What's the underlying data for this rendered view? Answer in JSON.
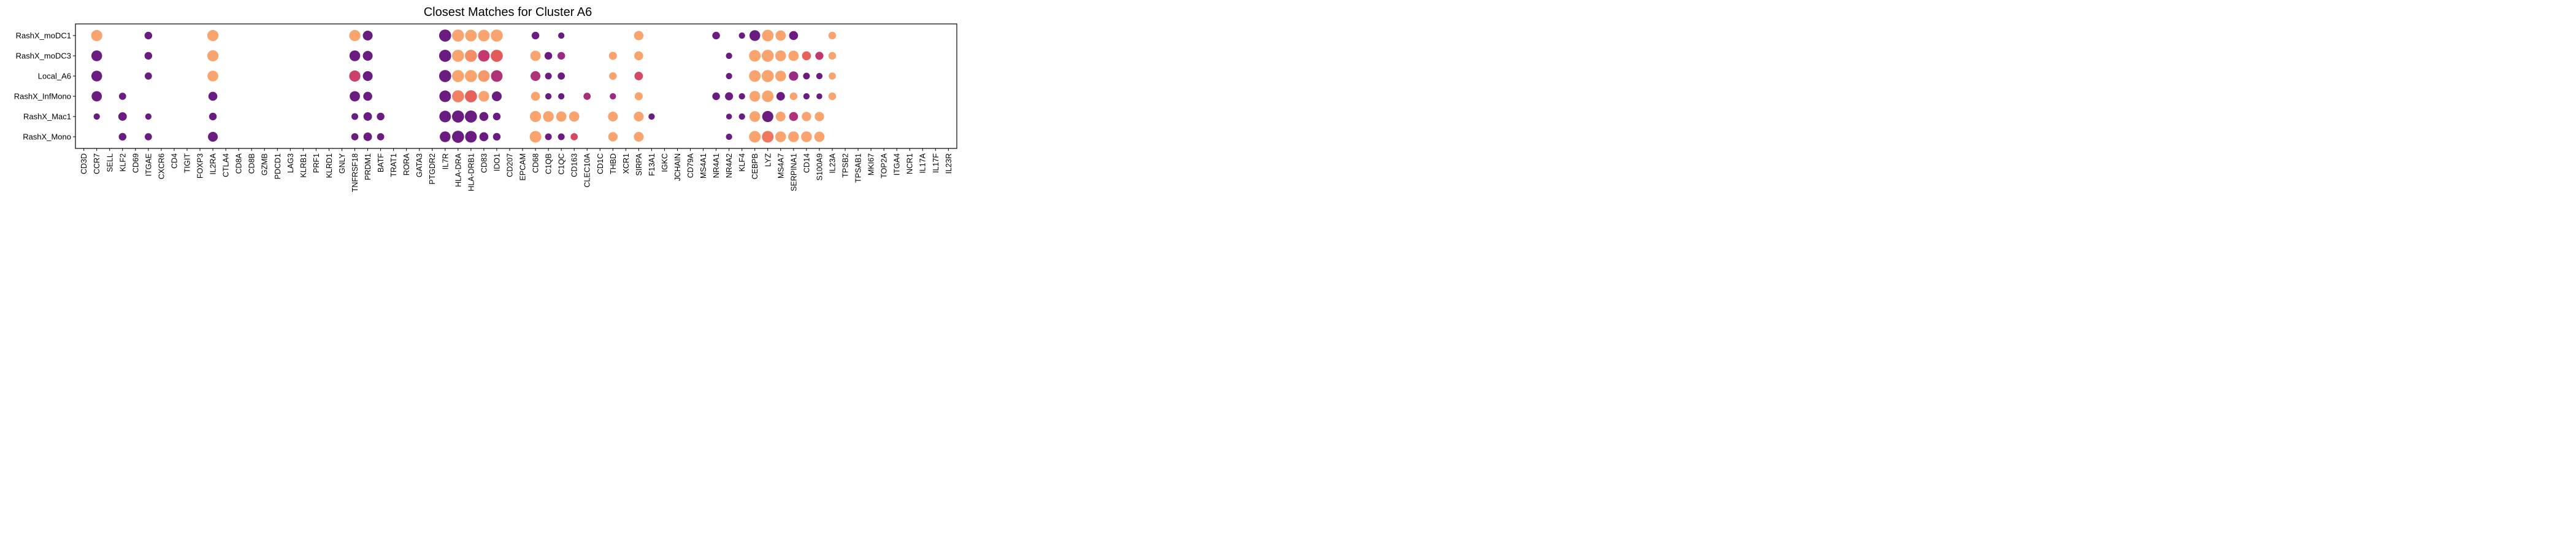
{
  "chart_data": {
    "type": "dotplot",
    "title": "Closest Matches for Cluster A6",
    "xlabel": "",
    "ylabel": "",
    "grid": false,
    "legend": "none",
    "rows": [
      "RashX_moDC1",
      "RashX_moDC3",
      "Local_A6",
      "RashX_InfMono",
      "RashX_Mac1",
      "RashX_Mono"
    ],
    "columns": [
      "CD3D",
      "CCR7",
      "SELL",
      "KLF2",
      "CD69",
      "ITGAE",
      "CXCR6",
      "CD4",
      "TIGIT",
      "FOXP3",
      "IL2RA",
      "CTLA4",
      "CD8A",
      "CD8B",
      "GZMB",
      "PDCD1",
      "LAG3",
      "KLRB1",
      "PRF1",
      "KLRD1",
      "GNLY",
      "TNFRSF18",
      "PRDM1",
      "BATF",
      "TRAT1",
      "RORA",
      "GATA3",
      "PTGDR2",
      "IL7R",
      "HLA-DRA",
      "HLA-DRB1",
      "CD83",
      "IDO1",
      "CD207",
      "EPCAM",
      "CD68",
      "C1QB",
      "C1QC",
      "CD163",
      "CLEC10A",
      "CD1C",
      "THBD",
      "XCR1",
      "SIRPA",
      "F13A1",
      "IGKC",
      "JCHAIN",
      "CD79A",
      "MS4A1",
      "NR4A1",
      "NR4A2",
      "KLF4",
      "CEBPB",
      "LYZ",
      "MS4A7",
      "SERPINA1",
      "CD14",
      "S100A9",
      "IL23A",
      "TPSB2",
      "TPSAB1",
      "MKI67",
      "TOP2A",
      "ITGA4",
      "NCR1",
      "IL17A",
      "IL17F",
      "IL23R"
    ],
    "color_scale": [
      "#6a1c80",
      "#9a2a84",
      "#c4396d",
      "#e35a5a",
      "#f0765f",
      "#f9a36f"
    ],
    "color_scale_range": [
      0,
      1
    ],
    "size_scale_range": [
      0,
      1
    ],
    "points": [
      {
        "row": "RashX_moDC1",
        "col": "CCR7",
        "size": 0.85,
        "color": 1.0
      },
      {
        "row": "RashX_moDC1",
        "col": "ITGAE",
        "size": 0.45,
        "color": 0.0
      },
      {
        "row": "RashX_moDC1",
        "col": "IL2RA",
        "size": 0.85,
        "color": 1.0
      },
      {
        "row": "RashX_moDC1",
        "col": "TNFRSF18",
        "size": 0.85,
        "color": 1.0
      },
      {
        "row": "RashX_moDC1",
        "col": "PRDM1",
        "size": 0.7,
        "color": 0.0
      },
      {
        "row": "RashX_moDC1",
        "col": "IL7R",
        "size": 0.95,
        "color": 0.0
      },
      {
        "row": "RashX_moDC1",
        "col": "HLA-DRA",
        "size": 0.95,
        "color": 1.0
      },
      {
        "row": "RashX_moDC1",
        "col": "HLA-DRB1",
        "size": 0.9,
        "color": 1.0
      },
      {
        "row": "RashX_moDC1",
        "col": "CD83",
        "size": 0.9,
        "color": 1.0
      },
      {
        "row": "RashX_moDC1",
        "col": "IDO1",
        "size": 0.95,
        "color": 1.0
      },
      {
        "row": "RashX_moDC1",
        "col": "CD68",
        "size": 0.45,
        "color": 0.0
      },
      {
        "row": "RashX_moDC1",
        "col": "C1QC",
        "size": 0.3,
        "color": 0.0
      },
      {
        "row": "RashX_moDC1",
        "col": "SIRPA",
        "size": 0.65,
        "color": 1.0
      },
      {
        "row": "RashX_moDC1",
        "col": "NR4A1",
        "size": 0.45,
        "color": 0.0
      },
      {
        "row": "RashX_moDC1",
        "col": "KLF4",
        "size": 0.3,
        "color": 0.0
      },
      {
        "row": "RashX_moDC1",
        "col": "CEBPB",
        "size": 0.8,
        "color": 0.0
      },
      {
        "row": "RashX_moDC1",
        "col": "LYZ",
        "size": 0.9,
        "color": 1.0
      },
      {
        "row": "RashX_moDC1",
        "col": "MS4A7",
        "size": 0.75,
        "color": 1.0
      },
      {
        "row": "RashX_moDC1",
        "col": "SERPINA1",
        "size": 0.6,
        "color": 0.0
      },
      {
        "row": "RashX_moDC1",
        "col": "IL23A",
        "size": 0.45,
        "color": 1.0
      },
      {
        "row": "RashX_moDC3",
        "col": "CCR7",
        "size": 0.8,
        "color": 0.0
      },
      {
        "row": "RashX_moDC3",
        "col": "ITGAE",
        "size": 0.45,
        "color": 0.0
      },
      {
        "row": "RashX_moDC3",
        "col": "IL2RA",
        "size": 0.85,
        "color": 1.0
      },
      {
        "row": "RashX_moDC3",
        "col": "TNFRSF18",
        "size": 0.8,
        "color": 0.0
      },
      {
        "row": "RashX_moDC3",
        "col": "PRDM1",
        "size": 0.7,
        "color": 0.0
      },
      {
        "row": "RashX_moDC3",
        "col": "IL7R",
        "size": 0.95,
        "color": 0.0
      },
      {
        "row": "RashX_moDC3",
        "col": "HLA-DRA",
        "size": 0.95,
        "color": 1.0
      },
      {
        "row": "RashX_moDC3",
        "col": "HLA-DRB1",
        "size": 0.95,
        "color": 0.9
      },
      {
        "row": "RashX_moDC3",
        "col": "CD83",
        "size": 0.9,
        "color": 0.4
      },
      {
        "row": "RashX_moDC3",
        "col": "IDO1",
        "size": 0.95,
        "color": 0.6
      },
      {
        "row": "RashX_moDC3",
        "col": "CD68",
        "size": 0.75,
        "color": 1.0
      },
      {
        "row": "RashX_moDC3",
        "col": "C1QB",
        "size": 0.45,
        "color": 0.0
      },
      {
        "row": "RashX_moDC3",
        "col": "C1QC",
        "size": 0.45,
        "color": 0.2
      },
      {
        "row": "RashX_moDC3",
        "col": "THBD",
        "size": 0.5,
        "color": 1.0
      },
      {
        "row": "RashX_moDC3",
        "col": "SIRPA",
        "size": 0.6,
        "color": 1.0
      },
      {
        "row": "RashX_moDC3",
        "col": "NR4A2",
        "size": 0.3,
        "color": 0.0
      },
      {
        "row": "RashX_moDC3",
        "col": "CEBPB",
        "size": 0.9,
        "color": 1.0
      },
      {
        "row": "RashX_moDC3",
        "col": "LYZ",
        "size": 0.95,
        "color": 1.0
      },
      {
        "row": "RashX_moDC3",
        "col": "MS4A7",
        "size": 0.8,
        "color": 1.0
      },
      {
        "row": "RashX_moDC3",
        "col": "SERPINA1",
        "size": 0.75,
        "color": 1.0
      },
      {
        "row": "RashX_moDC3",
        "col": "CD14",
        "size": 0.6,
        "color": 0.65
      },
      {
        "row": "RashX_moDC3",
        "col": "S100A9",
        "size": 0.5,
        "color": 0.4
      },
      {
        "row": "RashX_moDC3",
        "col": "IL23A",
        "size": 0.45,
        "color": 1.0
      },
      {
        "row": "Local_A6",
        "col": "CCR7",
        "size": 0.8,
        "color": 0.0
      },
      {
        "row": "Local_A6",
        "col": "ITGAE",
        "size": 0.4,
        "color": 0.0
      },
      {
        "row": "Local_A6",
        "col": "IL2RA",
        "size": 0.8,
        "color": 1.0
      },
      {
        "row": "Local_A6",
        "col": "TNFRSF18",
        "size": 0.85,
        "color": 0.45
      },
      {
        "row": "Local_A6",
        "col": "PRDM1",
        "size": 0.7,
        "color": 0.0
      },
      {
        "row": "Local_A6",
        "col": "IL7R",
        "size": 0.95,
        "color": 0.0
      },
      {
        "row": "Local_A6",
        "col": "HLA-DRA",
        "size": 0.95,
        "color": 1.0
      },
      {
        "row": "Local_A6",
        "col": "HLA-DRB1",
        "size": 0.95,
        "color": 1.0
      },
      {
        "row": "Local_A6",
        "col": "CD83",
        "size": 0.9,
        "color": 0.95
      },
      {
        "row": "Local_A6",
        "col": "IDO1",
        "size": 0.9,
        "color": 0.3
      },
      {
        "row": "Local_A6",
        "col": "CD68",
        "size": 0.7,
        "color": 0.3
      },
      {
        "row": "Local_A6",
        "col": "C1QB",
        "size": 0.35,
        "color": 0.0
      },
      {
        "row": "Local_A6",
        "col": "C1QC",
        "size": 0.4,
        "color": 0.0
      },
      {
        "row": "Local_A6",
        "col": "THBD",
        "size": 0.45,
        "color": 1.0
      },
      {
        "row": "Local_A6",
        "col": "SIRPA",
        "size": 0.55,
        "color": 0.5
      },
      {
        "row": "Local_A6",
        "col": "NR4A2",
        "size": 0.3,
        "color": 0.0
      },
      {
        "row": "Local_A6",
        "col": "CEBPB",
        "size": 0.9,
        "color": 1.0
      },
      {
        "row": "Local_A6",
        "col": "LYZ",
        "size": 0.95,
        "color": 1.0
      },
      {
        "row": "Local_A6",
        "col": "MS4A7",
        "size": 0.8,
        "color": 1.0
      },
      {
        "row": "Local_A6",
        "col": "SERPINA1",
        "size": 0.65,
        "color": 0.2
      },
      {
        "row": "Local_A6",
        "col": "CD14",
        "size": 0.35,
        "color": 0.0
      },
      {
        "row": "Local_A6",
        "col": "S100A9",
        "size": 0.3,
        "color": 0.0
      },
      {
        "row": "Local_A6",
        "col": "IL23A",
        "size": 0.4,
        "color": 1.0
      },
      {
        "row": "RashX_InfMono",
        "col": "CCR7",
        "size": 0.75,
        "color": 0.0
      },
      {
        "row": "RashX_InfMono",
        "col": "KLF2",
        "size": 0.4,
        "color": 0.0
      },
      {
        "row": "RashX_InfMono",
        "col": "IL2RA",
        "size": 0.6,
        "color": 0.0
      },
      {
        "row": "RashX_InfMono",
        "col": "TNFRSF18",
        "size": 0.75,
        "color": 0.0
      },
      {
        "row": "RashX_InfMono",
        "col": "PRDM1",
        "size": 0.6,
        "color": 0.0
      },
      {
        "row": "RashX_InfMono",
        "col": "IL7R",
        "size": 0.9,
        "color": 0.0
      },
      {
        "row": "RashX_InfMono",
        "col": "HLA-DRA",
        "size": 0.95,
        "color": 0.85
      },
      {
        "row": "RashX_InfMono",
        "col": "HLA-DRB1",
        "size": 0.95,
        "color": 0.65
      },
      {
        "row": "RashX_InfMono",
        "col": "CD83",
        "size": 0.8,
        "color": 1.0
      },
      {
        "row": "RashX_InfMono",
        "col": "IDO1",
        "size": 0.7,
        "color": 0.0
      },
      {
        "row": "RashX_InfMono",
        "col": "CD68",
        "size": 0.6,
        "color": 1.0
      },
      {
        "row": "RashX_InfMono",
        "col": "C1QB",
        "size": 0.3,
        "color": 0.0
      },
      {
        "row": "RashX_InfMono",
        "col": "C1QC",
        "size": 0.3,
        "color": 0.0
      },
      {
        "row": "RashX_InfMono",
        "col": "CLEC10A",
        "size": 0.4,
        "color": 0.25
      },
      {
        "row": "RashX_InfMono",
        "col": "THBD",
        "size": 0.3,
        "color": 0.2
      },
      {
        "row": "RashX_InfMono",
        "col": "SIRPA",
        "size": 0.5,
        "color": 1.0
      },
      {
        "row": "RashX_InfMono",
        "col": "NR4A1",
        "size": 0.45,
        "color": 0.0
      },
      {
        "row": "RashX_InfMono",
        "col": "NR4A2",
        "size": 0.5,
        "color": 0.0
      },
      {
        "row": "RashX_InfMono",
        "col": "KLF4",
        "size": 0.3,
        "color": 0.0
      },
      {
        "row": "RashX_InfMono",
        "col": "CEBPB",
        "size": 0.8,
        "color": 1.0
      },
      {
        "row": "RashX_InfMono",
        "col": "LYZ",
        "size": 0.9,
        "color": 1.0
      },
      {
        "row": "RashX_InfMono",
        "col": "MS4A7",
        "size": 0.55,
        "color": 0.0
      },
      {
        "row": "RashX_InfMono",
        "col": "SERPINA1",
        "size": 0.45,
        "color": 1.0
      },
      {
        "row": "RashX_InfMono",
        "col": "CD14",
        "size": 0.3,
        "color": 0.0
      },
      {
        "row": "RashX_InfMono",
        "col": "S100A9",
        "size": 0.25,
        "color": 0.0
      },
      {
        "row": "RashX_InfMono",
        "col": "IL23A",
        "size": 0.45,
        "color": 1.0
      },
      {
        "row": "RashX_Mac1",
        "col": "CCR7",
        "size": 0.3,
        "color": 0.0
      },
      {
        "row": "RashX_Mac1",
        "col": "KLF2",
        "size": 0.55,
        "color": 0.0
      },
      {
        "row": "RashX_Mac1",
        "col": "ITGAE",
        "size": 0.3,
        "color": 0.0
      },
      {
        "row": "RashX_Mac1",
        "col": "IL2RA",
        "size": 0.45,
        "color": 0.0
      },
      {
        "row": "RashX_Mac1",
        "col": "TNFRSF18",
        "size": 0.35,
        "color": 0.0
      },
      {
        "row": "RashX_Mac1",
        "col": "PRDM1",
        "size": 0.55,
        "color": 0.0
      },
      {
        "row": "RashX_Mac1",
        "col": "BATF",
        "size": 0.45,
        "color": 0.0
      },
      {
        "row": "RashX_Mac1",
        "col": "IL7R",
        "size": 0.9,
        "color": 0.0
      },
      {
        "row": "RashX_Mac1",
        "col": "HLA-DRA",
        "size": 0.95,
        "color": 0.0
      },
      {
        "row": "RashX_Mac1",
        "col": "HLA-DRB1",
        "size": 0.95,
        "color": 0.0
      },
      {
        "row": "RashX_Mac1",
        "col": "CD83",
        "size": 0.6,
        "color": 0.0
      },
      {
        "row": "RashX_Mac1",
        "col": "IDO1",
        "size": 0.45,
        "color": 0.0
      },
      {
        "row": "RashX_Mac1",
        "col": "CD68",
        "size": 0.85,
        "color": 1.0
      },
      {
        "row": "RashX_Mac1",
        "col": "C1QB",
        "size": 0.8,
        "color": 1.0
      },
      {
        "row": "RashX_Mac1",
        "col": "C1QC",
        "size": 0.75,
        "color": 1.0
      },
      {
        "row": "RashX_Mac1",
        "col": "CD163",
        "size": 0.75,
        "color": 1.0
      },
      {
        "row": "RashX_Mac1",
        "col": "THBD",
        "size": 0.7,
        "color": 1.0
      },
      {
        "row": "RashX_Mac1",
        "col": "SIRPA",
        "size": 0.7,
        "color": 1.0
      },
      {
        "row": "RashX_Mac1",
        "col": "F13A1",
        "size": 0.3,
        "color": 0.0
      },
      {
        "row": "RashX_Mac1",
        "col": "NR4A2",
        "size": 0.25,
        "color": 0.0
      },
      {
        "row": "RashX_Mac1",
        "col": "KLF4",
        "size": 0.3,
        "color": 0.0
      },
      {
        "row": "RashX_Mac1",
        "col": "CEBPB",
        "size": 0.8,
        "color": 1.0
      },
      {
        "row": "RashX_Mac1",
        "col": "LYZ",
        "size": 0.85,
        "color": 0.0
      },
      {
        "row": "RashX_Mac1",
        "col": "MS4A7",
        "size": 0.7,
        "color": 1.0
      },
      {
        "row": "RashX_Mac1",
        "col": "SERPINA1",
        "size": 0.6,
        "color": 0.3
      },
      {
        "row": "RashX_Mac1",
        "col": "CD14",
        "size": 0.65,
        "color": 1.0
      },
      {
        "row": "RashX_Mac1",
        "col": "S100A9",
        "size": 0.65,
        "color": 1.0
      },
      {
        "row": "RashX_Mono",
        "col": "KLF2",
        "size": 0.45,
        "color": 0.0
      },
      {
        "row": "RashX_Mono",
        "col": "ITGAE",
        "size": 0.4,
        "color": 0.0
      },
      {
        "row": "RashX_Mono",
        "col": "IL2RA",
        "size": 0.7,
        "color": 0.0
      },
      {
        "row": "RashX_Mono",
        "col": "TNFRSF18",
        "size": 0.4,
        "color": 0.0
      },
      {
        "row": "RashX_Mono",
        "col": "PRDM1",
        "size": 0.55,
        "color": 0.0
      },
      {
        "row": "RashX_Mono",
        "col": "BATF",
        "size": 0.4,
        "color": 0.0
      },
      {
        "row": "RashX_Mono",
        "col": "IL7R",
        "size": 0.8,
        "color": 0.0
      },
      {
        "row": "RashX_Mono",
        "col": "HLA-DRA",
        "size": 0.95,
        "color": 0.0
      },
      {
        "row": "RashX_Mono",
        "col": "HLA-DRB1",
        "size": 0.9,
        "color": 0.0
      },
      {
        "row": "RashX_Mono",
        "col": "CD83",
        "size": 0.6,
        "color": 0.0
      },
      {
        "row": "RashX_Mono",
        "col": "IDO1",
        "size": 0.45,
        "color": 0.0
      },
      {
        "row": "RashX_Mono",
        "col": "CD68",
        "size": 0.9,
        "color": 1.0
      },
      {
        "row": "RashX_Mono",
        "col": "C1QB",
        "size": 0.35,
        "color": 0.0
      },
      {
        "row": "RashX_Mono",
        "col": "C1QC",
        "size": 0.35,
        "color": 0.0
      },
      {
        "row": "RashX_Mono",
        "col": "CD163",
        "size": 0.4,
        "color": 0.5
      },
      {
        "row": "RashX_Mono",
        "col": "THBD",
        "size": 0.65,
        "color": 1.0
      },
      {
        "row": "RashX_Mono",
        "col": "SIRPA",
        "size": 0.7,
        "color": 1.0
      },
      {
        "row": "RashX_Mono",
        "col": "NR4A2",
        "size": 0.3,
        "color": 0.0
      },
      {
        "row": "RashX_Mono",
        "col": "CEBPB",
        "size": 0.9,
        "color": 1.0
      },
      {
        "row": "RashX_Mono",
        "col": "LYZ",
        "size": 0.9,
        "color": 0.8
      },
      {
        "row": "RashX_Mono",
        "col": "MS4A7",
        "size": 0.8,
        "color": 1.0
      },
      {
        "row": "RashX_Mono",
        "col": "SERPINA1",
        "size": 0.8,
        "color": 1.0
      },
      {
        "row": "RashX_Mono",
        "col": "CD14",
        "size": 0.8,
        "color": 1.0
      },
      {
        "row": "RashX_Mono",
        "col": "S100A9",
        "size": 0.75,
        "color": 1.0
      }
    ]
  }
}
